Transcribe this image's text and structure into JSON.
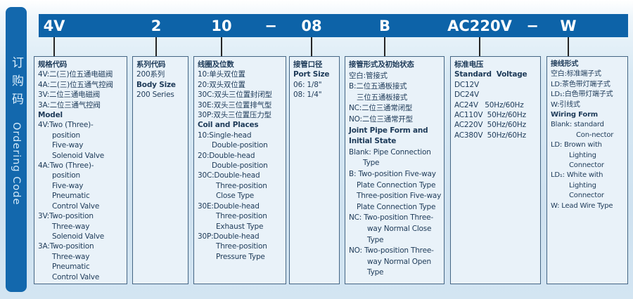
{
  "sidebar": {
    "title_cn": "订购码",
    "title_en": "Ordering Code"
  },
  "header": {
    "bar_color": "#0d63a8",
    "codes": [
      "4V",
      "2",
      "10",
      "−",
      "08",
      "B",
      "AC220V",
      "−",
      "W"
    ]
  },
  "columns": [
    {
      "name": "model",
      "lines": [
        {
          "t": "规格代码",
          "b": 1,
          "i": 0
        },
        {
          "t": "4V:二(三)位五通电磁阀",
          "b": 0,
          "i": 0
        },
        {
          "t": "4A:二(三)位五通气控阀",
          "b": 0,
          "i": 0
        },
        {
          "t": "3V:二位三通电磁阀",
          "b": 0,
          "i": 0
        },
        {
          "t": "3A:二位三通气控阀",
          "b": 0,
          "i": 0
        },
        {
          "t": "Model",
          "b": 1,
          "i": 0
        },
        {
          "t": "4V:Two (Three)-",
          "b": 0,
          "i": 0
        },
        {
          "t": "position",
          "b": 0,
          "i": 2
        },
        {
          "t": "Five-way",
          "b": 0,
          "i": 2
        },
        {
          "t": "Solenoid Valve",
          "b": 0,
          "i": 2
        },
        {
          "t": "4A:Two (Three)-",
          "b": 0,
          "i": 0
        },
        {
          "t": "position",
          "b": 0,
          "i": 2
        },
        {
          "t": "Five-way",
          "b": 0,
          "i": 2
        },
        {
          "t": "Pneumatic",
          "b": 0,
          "i": 2
        },
        {
          "t": "Control Valve",
          "b": 0,
          "i": 2
        },
        {
          "t": "3V:Two-position",
          "b": 0,
          "i": 0
        },
        {
          "t": "Three-way",
          "b": 0,
          "i": 2
        },
        {
          "t": "Solenoid Valve",
          "b": 0,
          "i": 2
        },
        {
          "t": "3A:Two-position",
          "b": 0,
          "i": 0
        },
        {
          "t": "Three-way",
          "b": 0,
          "i": 2
        },
        {
          "t": "Pneumatic",
          "b": 0,
          "i": 2
        },
        {
          "t": "Control Valve",
          "b": 0,
          "i": 2
        }
      ]
    },
    {
      "name": "body-size",
      "lines": [
        {
          "t": "系列代码",
          "b": 1,
          "i": 0
        },
        {
          "t": "200系列",
          "b": 0,
          "i": 0
        },
        {
          "t": "Body Size",
          "b": 1,
          "i": 0
        },
        {
          "t": "200 Series",
          "b": 0,
          "i": 0
        }
      ]
    },
    {
      "name": "coil-and-places",
      "lines": [
        {
          "t": "线圈及位数",
          "b": 1,
          "i": 0
        },
        {
          "t": "10:单头双位置",
          "b": 0,
          "i": 0
        },
        {
          "t": "20:双头双位置",
          "b": 0,
          "i": 0
        },
        {
          "t": "30C:双头三位置封闭型",
          "b": 0,
          "i": 0
        },
        {
          "t": "30E:双头三位置排气型",
          "b": 0,
          "i": 0
        },
        {
          "t": "30P:双头三位置压力型",
          "b": 0,
          "i": 0
        },
        {
          "t": "Coil and Places",
          "b": 1,
          "i": 0
        },
        {
          "t": "10:Single-head",
          "b": 0,
          "i": 0
        },
        {
          "t": "Double-position",
          "b": 0,
          "i": 2
        },
        {
          "t": "20:Double-head",
          "b": 0,
          "i": 0
        },
        {
          "t": "Double-position",
          "b": 0,
          "i": 2
        },
        {
          "t": "30C:Double-head",
          "b": 0,
          "i": 0
        },
        {
          "t": "Three-position",
          "b": 0,
          "i": 3
        },
        {
          "t": "Close Type",
          "b": 0,
          "i": 3
        },
        {
          "t": "30E:Double-head",
          "b": 0,
          "i": 0
        },
        {
          "t": "Three-position",
          "b": 0,
          "i": 3
        },
        {
          "t": "Exhaust Type",
          "b": 0,
          "i": 3
        },
        {
          "t": "30P:Double-head",
          "b": 0,
          "i": 0
        },
        {
          "t": "Three-position",
          "b": 0,
          "i": 3
        },
        {
          "t": "Pressure Type",
          "b": 0,
          "i": 3
        }
      ]
    },
    {
      "name": "port-size",
      "lines": [
        {
          "t": "接管口径",
          "b": 1,
          "i": 0
        },
        {
          "t": "Port Size",
          "b": 1,
          "i": 0
        },
        {
          "t": "06: 1/8\"",
          "b": 0,
          "i": 0
        },
        {
          "t": "08: 1/4\"",
          "b": 0,
          "i": 0
        }
      ]
    },
    {
      "name": "joint-pipe-form",
      "lines": [
        {
          "t": "接管形式及初始状态",
          "b": 1,
          "i": 0
        },
        {
          "t": "空白:管接式",
          "b": 0,
          "i": 0
        },
        {
          "t": "B:二位五通板接式",
          "b": 0,
          "i": 0
        },
        {
          "t": "三位五通板接式",
          "b": 0,
          "i": 1
        },
        {
          "t": "NC:二位三通常闭型",
          "b": 0,
          "i": 0
        },
        {
          "t": "NO:二位三通常开型",
          "b": 0,
          "i": 0
        },
        {
          "t": "Joint Pipe Form and",
          "b": 1,
          "i": 0
        },
        {
          "t": "Initial State",
          "b": 1,
          "i": 0
        },
        {
          "t": "Blank: Pipe Connection",
          "b": 0,
          "i": 0
        },
        {
          "t": "Type",
          "b": 0,
          "i": 2
        },
        {
          "t": "B: Two-position Five-way",
          "b": 0,
          "i": 0
        },
        {
          "t": "Plate Connection Type",
          "b": 0,
          "i": 1
        },
        {
          "t": "Three-position Five-way",
          "b": 0,
          "i": 1
        },
        {
          "t": "Plate Connection Type",
          "b": 0,
          "i": 1
        },
        {
          "t": "NC: Two-position Three-",
          "b": 0,
          "i": 0
        },
        {
          "t": "way Normal Close",
          "b": 0,
          "i": 3
        },
        {
          "t": "Type",
          "b": 0,
          "i": 3
        },
        {
          "t": "NO: Two-position Three-",
          "b": 0,
          "i": 0
        },
        {
          "t": "way Normal Open",
          "b": 0,
          "i": 3
        },
        {
          "t": "Type",
          "b": 0,
          "i": 3
        }
      ]
    },
    {
      "name": "standard-voltage",
      "lines": [
        {
          "t": "标准电压",
          "b": 1,
          "i": 0
        },
        {
          "t": "Standard  Voltage",
          "b": 1,
          "i": 0
        },
        {
          "t": "DC12V",
          "b": 0,
          "i": 0
        },
        {
          "t": "DC24V",
          "b": 0,
          "i": 0
        },
        {
          "t": "AC24V   50Hz/60Hz",
          "b": 0,
          "i": 0
        },
        {
          "t": "AC110V  50Hz/60Hz",
          "b": 0,
          "i": 0
        },
        {
          "t": "AC220V  50Hz/60Hz",
          "b": 0,
          "i": 0
        },
        {
          "t": "AC380V  50Hz/60Hz",
          "b": 0,
          "i": 0
        }
      ]
    },
    {
      "name": "wiring-form",
      "lines": [
        {
          "t": "接线形式",
          "b": 1,
          "i": 0
        },
        {
          "t": "空白:标准端子式",
          "b": 0,
          "i": 0
        },
        {
          "t": "LD:茶色带灯端子式",
          "b": 0,
          "i": 0
        },
        {
          "t": "LD₁:白色带灯端子式",
          "b": 0,
          "i": 0
        },
        {
          "t": "W:引线式",
          "b": 0,
          "i": 0
        },
        {
          "t": "Wiring Form",
          "b": 1,
          "i": 0
        },
        {
          "t": "Blank: standard",
          "b": 0,
          "i": 0
        },
        {
          "t": "Con-nector",
          "b": 0,
          "i": 4
        },
        {
          "t": "LD: Brown with",
          "b": 0,
          "i": 0
        },
        {
          "t": "Lighting",
          "b": 0,
          "i": 3
        },
        {
          "t": "Connector",
          "b": 0,
          "i": 3
        },
        {
          "t": "LD₁: White with",
          "b": 0,
          "i": 0
        },
        {
          "t": "Lighting",
          "b": 0,
          "i": 3
        },
        {
          "t": "Connector",
          "b": 0,
          "i": 3
        },
        {
          "t": "W: Lead Wire Type",
          "b": 0,
          "i": 0
        }
      ]
    }
  ]
}
